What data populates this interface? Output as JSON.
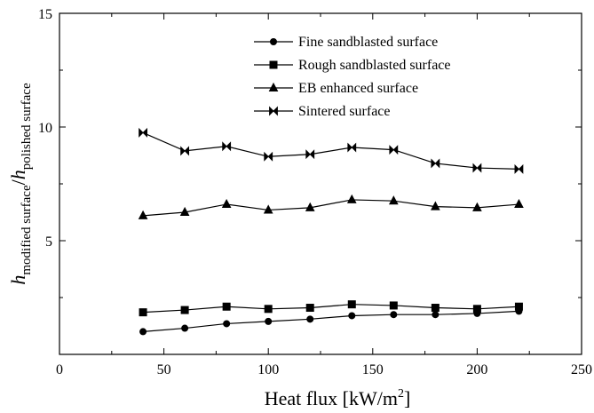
{
  "chart_data": {
    "type": "line",
    "x": [
      40,
      60,
      80,
      100,
      120,
      140,
      160,
      180,
      200,
      220
    ],
    "xlim": [
      0,
      250
    ],
    "ylim": [
      0,
      15
    ],
    "xticks": [
      "0",
      "50",
      "100",
      "150",
      "200",
      "250"
    ],
    "xtick_values": [
      0,
      50,
      100,
      150,
      200,
      250
    ],
    "yticks": [
      "5",
      "10",
      "15"
    ],
    "ytick_values": [
      5,
      10,
      15
    ],
    "xlabel_main": "Heat flux [kW/m",
    "xlabel_sup": "2",
    "xlabel_end": "]",
    "ylabel_h1": "h",
    "ylabel_sub1": "modified surface",
    "ylabel_slash": "/",
    "ylabel_h2": "h",
    "ylabel_sub2": "polished surface",
    "grid": false,
    "legend_position": "top-center",
    "series": [
      {
        "name": "Fine sandblasted surface",
        "marker": "circle",
        "values": [
          1.0,
          1.15,
          1.35,
          1.45,
          1.55,
          1.7,
          1.75,
          1.75,
          1.8,
          1.9
        ]
      },
      {
        "name": "Rough sandblasted surface",
        "marker": "square",
        "values": [
          1.85,
          1.95,
          2.1,
          2.0,
          2.05,
          2.2,
          2.15,
          2.05,
          2.0,
          2.1
        ]
      },
      {
        "name": "EB enhanced surface",
        "marker": "triangle",
        "values": [
          6.1,
          6.25,
          6.6,
          6.35,
          6.45,
          6.8,
          6.75,
          6.5,
          6.45,
          6.6
        ]
      },
      {
        "name": "Sintered surface",
        "marker": "bowtie",
        "values": [
          9.75,
          8.95,
          9.15,
          8.7,
          8.8,
          9.1,
          9.0,
          8.4,
          8.2,
          8.15
        ]
      }
    ],
    "colors": {
      "line": "#000000",
      "background": "#ffffff"
    }
  }
}
